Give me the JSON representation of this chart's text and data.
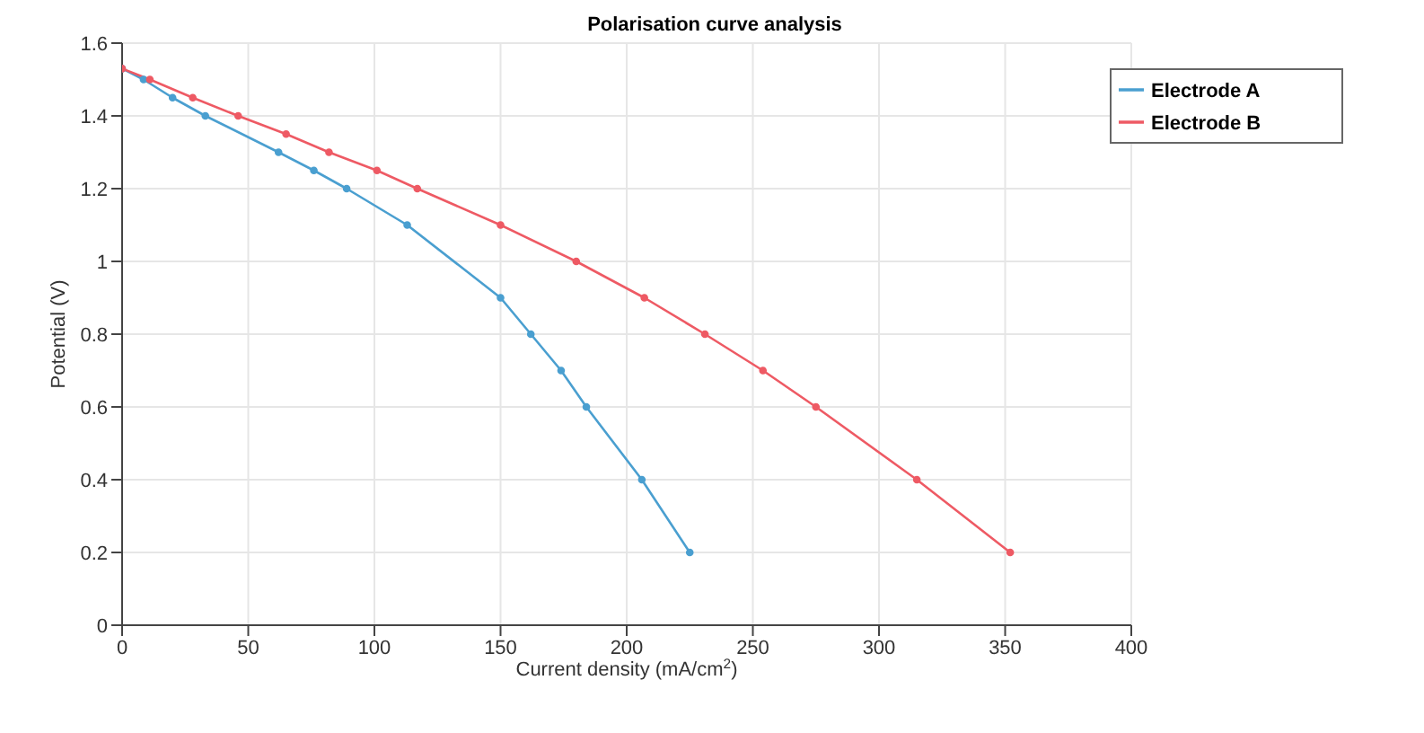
{
  "chart_data": {
    "type": "line",
    "title": "Polarisation curve analysis",
    "xlabel": "Current density (mA/cm$^{2}$)",
    "ylabel": "Potential (V)",
    "xlim": [
      0,
      400
    ],
    "xticks": [
      0,
      50,
      100,
      150,
      200,
      250,
      300,
      350,
      400
    ],
    "ylim": [
      0,
      1.6
    ],
    "yticks": [
      0,
      0.2,
      0.4,
      0.6,
      0.8,
      1,
      1.2,
      1.4,
      1.6
    ],
    "grid": true,
    "legend": "top right",
    "marker": "circle",
    "line_style": "solid",
    "series": [
      {
        "name": "Electrode A",
        "color": "#4a9fd0",
        "x": [
          0,
          8.5,
          20,
          33,
          62,
          76,
          89,
          113,
          150,
          162,
          174,
          184,
          206,
          225
        ],
        "values": [
          1.53,
          1.5,
          1.45,
          1.4,
          1.3,
          1.25,
          1.2,
          1.1,
          0.9,
          0.8,
          0.7,
          0.6,
          0.4,
          0.2
        ]
      },
      {
        "name": "Electrode B",
        "color": "#ee5a64",
        "x": [
          0,
          11,
          28,
          46,
          65,
          82,
          101,
          117,
          150,
          180,
          207,
          231,
          254,
          275,
          315,
          352
        ],
        "values": [
          1.53,
          1.5,
          1.45,
          1.4,
          1.35,
          1.3,
          1.25,
          1.2,
          1.1,
          1,
          0.9,
          0.8,
          0.7,
          0.6,
          0.4,
          0.2
        ]
      }
    ]
  }
}
